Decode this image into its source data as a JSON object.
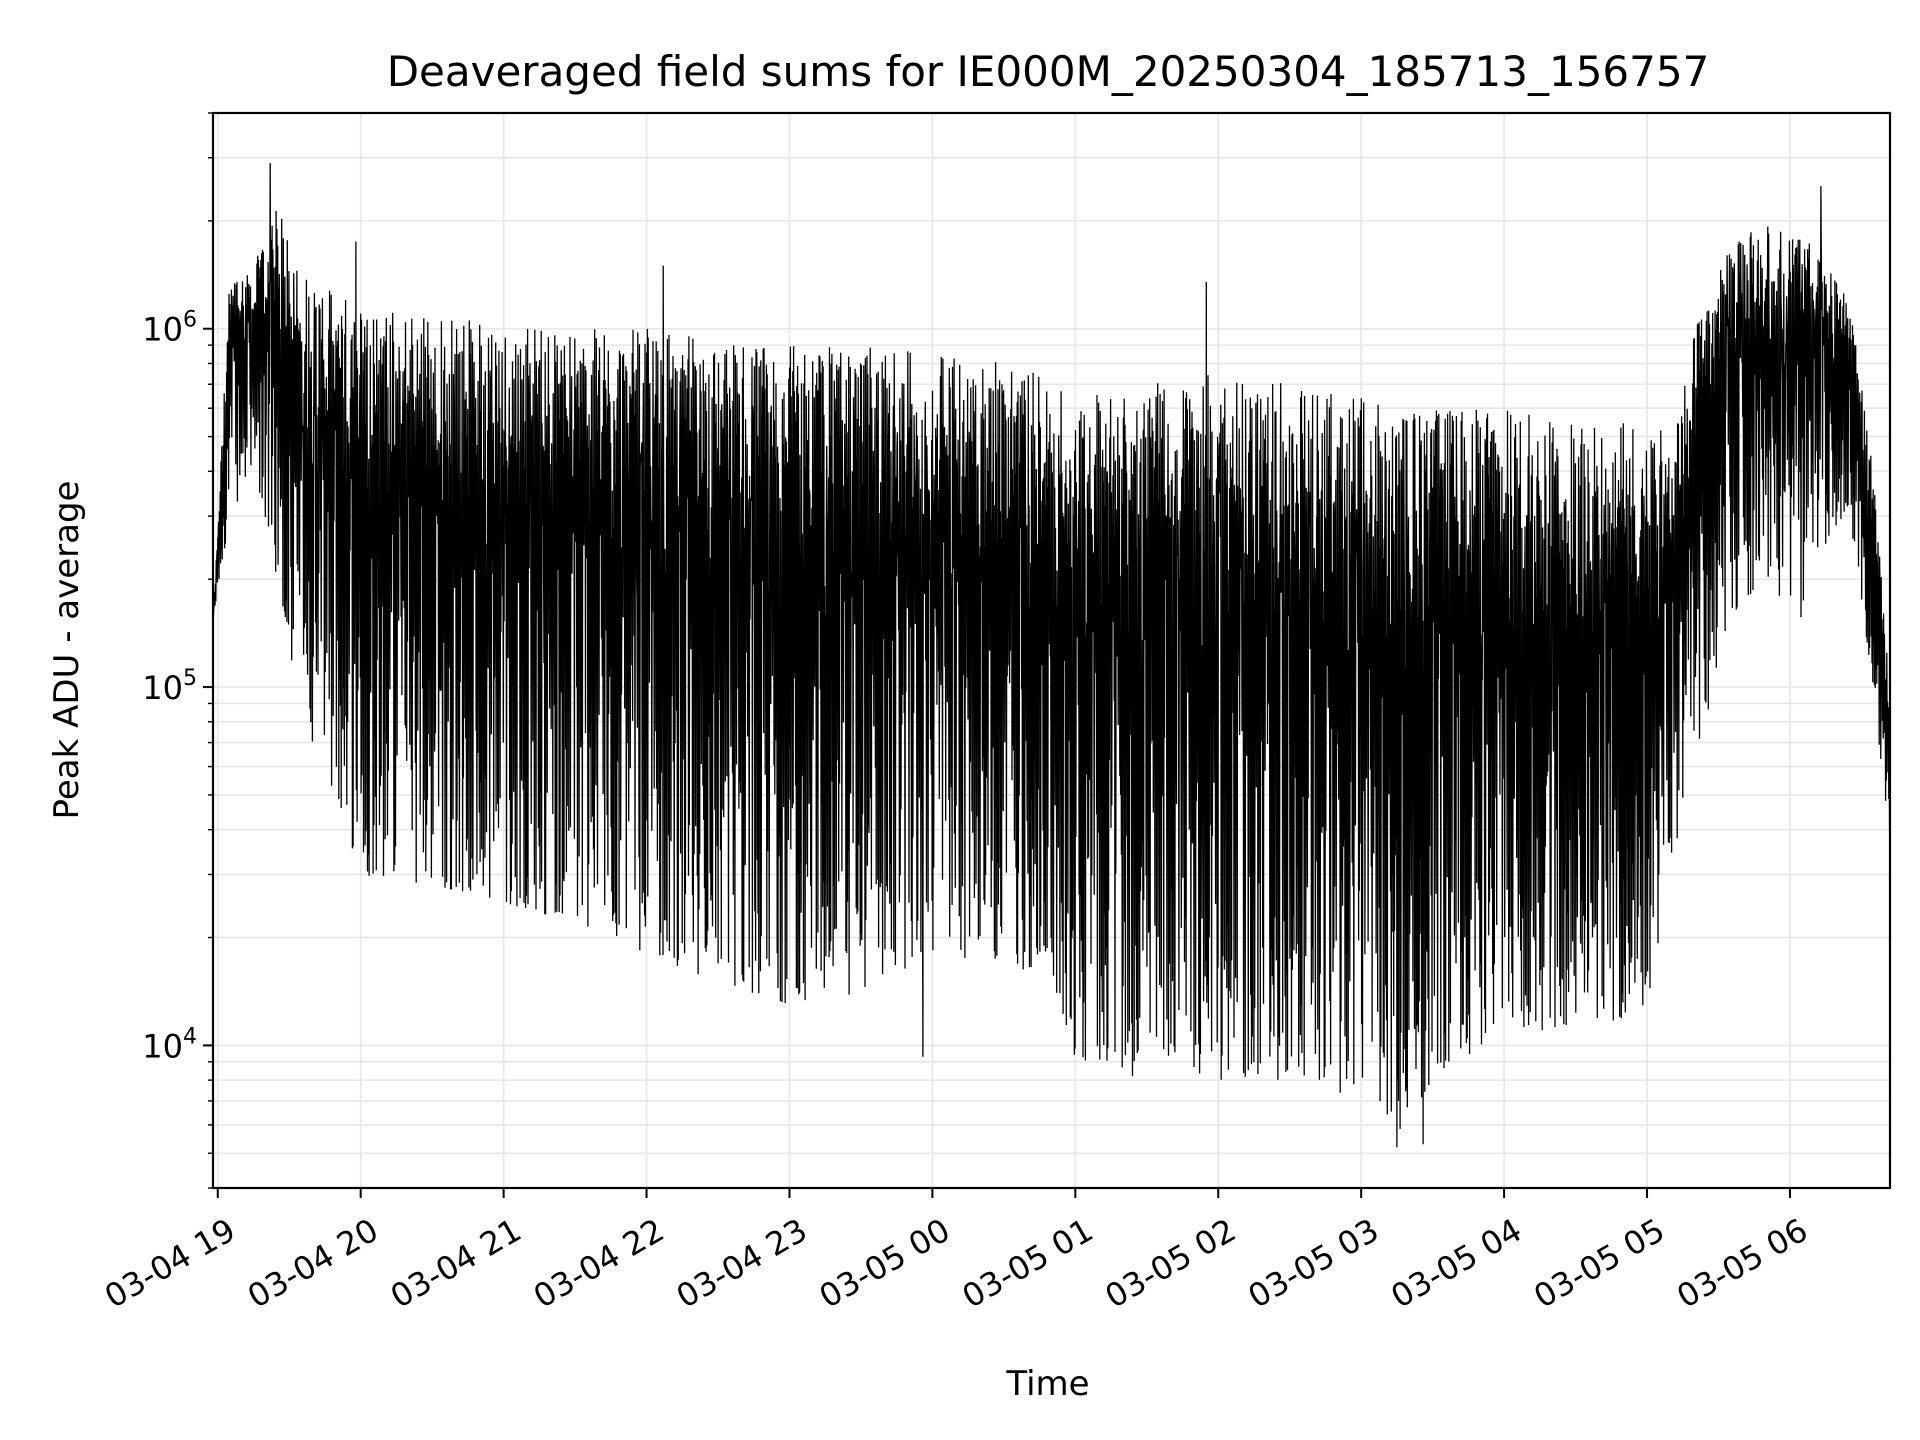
{
  "chart_data": {
    "type": "line",
    "title": "Deaveraged field sums for IE000M_20250304_185713_156757",
    "xlabel": "Time",
    "ylabel": "Peak ADU - average",
    "yscale": "log",
    "ylim": [
      4000,
      4000000
    ],
    "xlim": [
      "2025-03-04 18:58",
      "2025-03-05 06:42"
    ],
    "grid": true,
    "line_color": "#000000",
    "grid_color": "#e6e6e6",
    "y_ticks": [
      {
        "value": 10000,
        "base": "10",
        "exp": "4"
      },
      {
        "value": 100000,
        "base": "10",
        "exp": "5"
      },
      {
        "value": 1000000,
        "base": "10",
        "exp": "6"
      }
    ],
    "x_ticks": [
      {
        "time": "2025-03-04 19:00",
        "label": "03-04 19"
      },
      {
        "time": "2025-03-04 20:00",
        "label": "03-04 20"
      },
      {
        "time": "2025-03-04 21:00",
        "label": "03-04 21"
      },
      {
        "time": "2025-03-04 22:00",
        "label": "03-04 22"
      },
      {
        "time": "2025-03-04 23:00",
        "label": "03-04 23"
      },
      {
        "time": "2025-03-05 00:00",
        "label": "03-05 00"
      },
      {
        "time": "2025-03-05 01:00",
        "label": "03-05 01"
      },
      {
        "time": "2025-03-05 02:00",
        "label": "03-05 02"
      },
      {
        "time": "2025-03-05 03:00",
        "label": "03-05 03"
      },
      {
        "time": "2025-03-05 04:00",
        "label": "03-05 04"
      },
      {
        "time": "2025-03-05 05:00",
        "label": "03-05 05"
      },
      {
        "time": "2025-03-05 06:00",
        "label": "03-05 06"
      }
    ],
    "series": [
      {
        "envelope": [
          {
            "time": "2025-03-04 18:58",
            "high": 150000,
            "low": 150000
          },
          {
            "time": "2025-03-04 19:05",
            "high": 1400000,
            "low": 300000
          },
          {
            "time": "2025-03-04 19:15",
            "high": 1500000,
            "low": 400000
          },
          {
            "time": "2025-03-04 19:25",
            "high": 2200000,
            "low": 200000
          },
          {
            "time": "2025-03-04 19:35",
            "high": 1500000,
            "low": 80000
          },
          {
            "time": "2025-03-04 19:45",
            "high": 1300000,
            "low": 60000
          },
          {
            "time": "2025-03-04 20:00",
            "high": 1200000,
            "low": 30000
          },
          {
            "time": "2025-03-04 20:30",
            "high": 1100000,
            "low": 28000
          },
          {
            "time": "2025-03-04 21:00",
            "high": 1050000,
            "low": 25000
          },
          {
            "time": "2025-03-04 21:30",
            "high": 1000000,
            "low": 22000
          },
          {
            "time": "2025-03-04 22:00",
            "high": 1000000,
            "low": 18000
          },
          {
            "time": "2025-03-04 22:30",
            "high": 950000,
            "low": 15000
          },
          {
            "time": "2025-03-04 23:00",
            "high": 900000,
            "low": 13000
          },
          {
            "time": "2025-03-04 23:30",
            "high": 900000,
            "low": 14000
          },
          {
            "time": "2025-03-05 00:00",
            "high": 850000,
            "low": 18000
          },
          {
            "time": "2025-03-05 00:30",
            "high": 850000,
            "low": 17000
          },
          {
            "time": "2025-03-05 00:50",
            "high": 700000,
            "low": 15000
          },
          {
            "time": "2025-03-05 01:00",
            "high": 650000,
            "low": 9000
          },
          {
            "time": "2025-03-05 01:30",
            "high": 700000,
            "low": 8500
          },
          {
            "time": "2025-03-05 02:00",
            "high": 750000,
            "low": 8000
          },
          {
            "time": "2025-03-05 02:30",
            "high": 700000,
            "low": 8000
          },
          {
            "time": "2025-03-05 03:00",
            "high": 650000,
            "low": 7000
          },
          {
            "time": "2025-03-05 03:15",
            "high": 600000,
            "low": 5500
          },
          {
            "time": "2025-03-05 03:30",
            "high": 600000,
            "low": 8000
          },
          {
            "time": "2025-03-05 04:00",
            "high": 600000,
            "low": 11000
          },
          {
            "time": "2025-03-05 04:30",
            "high": 550000,
            "low": 11000
          },
          {
            "time": "2025-03-05 05:00",
            "high": 550000,
            "low": 12000
          },
          {
            "time": "2025-03-05 05:10",
            "high": 500000,
            "low": 30000
          },
          {
            "time": "2025-03-05 05:20",
            "high": 1000000,
            "low": 60000
          },
          {
            "time": "2025-03-05 05:35",
            "high": 1700000,
            "low": 150000
          },
          {
            "time": "2025-03-05 05:50",
            "high": 2000000,
            "low": 200000
          },
          {
            "time": "2025-03-05 06:05",
            "high": 1900000,
            "low": 150000
          },
          {
            "time": "2025-03-05 06:15",
            "high": 1500000,
            "low": 250000
          },
          {
            "time": "2025-03-05 06:25",
            "high": 1200000,
            "low": 300000
          },
          {
            "time": "2025-03-05 06:35",
            "high": 400000,
            "low": 100000
          },
          {
            "time": "2025-03-05 06:42",
            "high": 100000,
            "low": 35000
          }
        ],
        "spikes": [
          {
            "time": "2025-03-04 19:22",
            "value": 2900000
          },
          {
            "time": "2025-03-04 19:58",
            "value": 1750000
          },
          {
            "time": "2025-03-04 22:07",
            "value": 1500000
          },
          {
            "time": "2025-03-05 01:55",
            "value": 1350000
          },
          {
            "time": "2025-03-05 06:13",
            "value": 2500000
          },
          {
            "time": "2025-03-05 03:15",
            "value": 5200
          },
          {
            "time": "2025-03-05 03:26",
            "value": 5300
          },
          {
            "time": "2025-03-04 23:56",
            "value": 9300
          },
          {
            "time": "2025-03-05 01:24",
            "value": 8200
          }
        ]
      }
    ]
  }
}
